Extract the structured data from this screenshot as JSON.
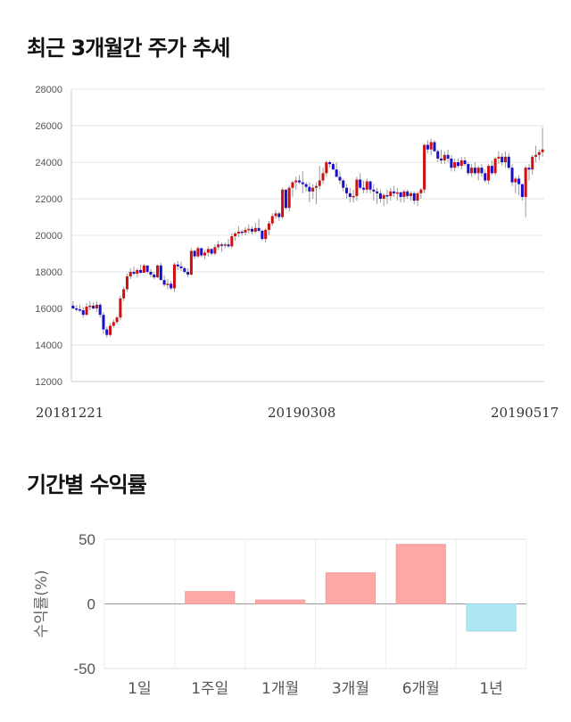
{
  "chart_title": "최근 3개월간 주가 추세",
  "returns_title": "기간별 수익률",
  "colors": {
    "up": "#cc1111",
    "down": "#1a10c8",
    "pos_bar": "#ffa8a8",
    "neg_bar": "#aee8f2"
  },
  "chart_data": [
    {
      "type": "candlestick",
      "ylim": [
        12000,
        28000
      ],
      "yticks": [
        12000,
        14000,
        16000,
        18000,
        20000,
        22000,
        24000,
        26000,
        28000
      ],
      "xticks": [
        "20181221",
        "20190308",
        "20190517"
      ],
      "grid": true,
      "ohlc": [
        [
          16150,
          16400,
          15950,
          16000
        ],
        [
          16000,
          16200,
          15850,
          15950
        ],
        [
          15950,
          16200,
          15800,
          15900
        ],
        [
          15900,
          16050,
          15500,
          15650
        ],
        [
          15650,
          16300,
          15600,
          16100
        ],
        [
          16100,
          16400,
          15900,
          16150
        ],
        [
          16150,
          16350,
          15950,
          16000
        ],
        [
          16000,
          16400,
          15800,
          16200
        ],
        [
          16200,
          16300,
          15500,
          15650
        ],
        [
          15650,
          15800,
          14600,
          14850
        ],
        [
          14850,
          15000,
          14400,
          14550
        ],
        [
          14550,
          15200,
          14450,
          15050
        ],
        [
          15050,
          15400,
          14950,
          15250
        ],
        [
          15250,
          15600,
          15150,
          15500
        ],
        [
          15500,
          16700,
          15350,
          16550
        ],
        [
          16550,
          17200,
          16400,
          17050
        ],
        [
          17050,
          17900,
          16900,
          17750
        ],
        [
          17750,
          18200,
          17600,
          18000
        ],
        [
          18000,
          18300,
          17800,
          17900
        ],
        [
          17900,
          18200,
          17700,
          18100
        ],
        [
          18100,
          18400,
          17900,
          17950
        ],
        [
          17950,
          18450,
          18000,
          18350
        ],
        [
          18350,
          18300,
          17900,
          18000
        ],
        [
          18000,
          18150,
          17700,
          17850
        ],
        [
          17850,
          18000,
          17600,
          17700
        ],
        [
          17700,
          18400,
          17650,
          18350
        ],
        [
          18350,
          18500,
          17600,
          17550
        ],
        [
          17550,
          17800,
          17200,
          17300
        ],
        [
          17300,
          17600,
          17050,
          17350
        ],
        [
          17350,
          17500,
          17000,
          17100
        ],
        [
          17100,
          18500,
          16900,
          18400
        ],
        [
          18400,
          18600,
          18100,
          18300
        ],
        [
          18300,
          18550,
          18050,
          18200
        ],
        [
          18200,
          18300,
          17900,
          18000
        ],
        [
          18000,
          18200,
          17700,
          17850
        ],
        [
          17850,
          19300,
          17800,
          19150
        ],
        [
          19150,
          19200,
          18700,
          18850
        ],
        [
          18850,
          19400,
          18750,
          19300
        ],
        [
          19300,
          19300,
          18800,
          18900
        ],
        [
          18900,
          19200,
          18700,
          19050
        ],
        [
          19050,
          19400,
          18850,
          19250
        ],
        [
          19250,
          19300,
          18900,
          19000
        ],
        [
          19000,
          19500,
          18900,
          19350
        ],
        [
          19350,
          19700,
          19200,
          19500
        ],
        [
          19500,
          19600,
          19100,
          19450
        ],
        [
          19450,
          19600,
          19300,
          19500
        ],
        [
          19500,
          19800,
          19300,
          19400
        ],
        [
          19400,
          20100,
          19300,
          19950
        ],
        [
          19950,
          20200,
          19700,
          20100
        ],
        [
          20100,
          20500,
          19900,
          20200
        ],
        [
          20200,
          20300,
          20000,
          20150
        ],
        [
          20150,
          20450,
          20000,
          20300
        ],
        [
          20300,
          20600,
          20100,
          20350
        ],
        [
          20350,
          20500,
          20050,
          20200
        ],
        [
          20200,
          20700,
          20100,
          20400
        ],
        [
          20400,
          20900,
          20150,
          20250
        ],
        [
          20250,
          20300,
          19700,
          19800
        ],
        [
          19800,
          20400,
          19600,
          20300
        ],
        [
          20300,
          20800,
          20000,
          20650
        ],
        [
          20650,
          21200,
          20500,
          21050
        ],
        [
          21050,
          21400,
          20900,
          21200
        ],
        [
          21200,
          21300,
          20800,
          21000
        ],
        [
          21000,
          22600,
          20900,
          22500
        ],
        [
          22500,
          22400,
          21400,
          21500
        ],
        [
          21500,
          22700,
          21300,
          22600
        ],
        [
          22600,
          23000,
          22100,
          22900
        ],
        [
          22900,
          23200,
          22500,
          23000
        ],
        [
          23000,
          23300,
          22800,
          22900
        ],
        [
          22900,
          23500,
          22300,
          22800
        ],
        [
          22800,
          22900,
          22400,
          22650
        ],
        [
          22650,
          22900,
          21800,
          22400
        ],
        [
          22400,
          22800,
          22000,
          22600
        ],
        [
          22600,
          22900,
          21700,
          22700
        ],
        [
          22700,
          23800,
          22500,
          23000
        ],
        [
          23000,
          23700,
          22800,
          23400
        ],
        [
          23400,
          24100,
          23200,
          24000
        ],
        [
          24000,
          24100,
          23700,
          23900
        ],
        [
          23900,
          24000,
          23600,
          23600
        ],
        [
          23600,
          24000,
          23200,
          23200
        ],
        [
          23200,
          23500,
          22800,
          23000
        ],
        [
          23000,
          23100,
          22400,
          22600
        ],
        [
          22600,
          22800,
          22000,
          22300
        ],
        [
          22300,
          22600,
          21800,
          22100
        ],
        [
          22100,
          22500,
          21800,
          22150
        ],
        [
          22150,
          23200,
          21900,
          23050
        ],
        [
          23050,
          23400,
          22500,
          22600
        ],
        [
          22600,
          23000,
          22300,
          22500
        ],
        [
          22500,
          23100,
          22300,
          22950
        ],
        [
          22950,
          23000,
          22300,
          22500
        ],
        [
          22500,
          22800,
          21900,
          22400
        ],
        [
          22400,
          22600,
          21700,
          22300
        ],
        [
          22300,
          22500,
          21800,
          22000
        ],
        [
          22000,
          22300,
          21600,
          22200
        ],
        [
          22200,
          22500,
          21700,
          22150
        ],
        [
          22150,
          22600,
          21900,
          22400
        ],
        [
          22400,
          22700,
          22100,
          22300
        ],
        [
          22300,
          22600,
          21900,
          22350
        ],
        [
          22350,
          22400,
          21800,
          22100
        ],
        [
          22100,
          22500,
          21800,
          22400
        ],
        [
          22400,
          22500,
          22000,
          22150
        ],
        [
          22150,
          22400,
          21900,
          22300
        ],
        [
          22300,
          22400,
          21700,
          21900
        ],
        [
          21900,
          22400,
          21600,
          22300
        ],
        [
          22300,
          22600,
          22000,
          22500
        ],
        [
          22500,
          25000,
          22300,
          24950
        ],
        [
          24950,
          25200,
          24500,
          24700
        ],
        [
          24700,
          25300,
          24400,
          25100
        ],
        [
          25100,
          25200,
          24600,
          24600
        ],
        [
          24600,
          24700,
          24000,
          24200
        ],
        [
          24200,
          24700,
          23900,
          24100
        ],
        [
          24100,
          24600,
          23900,
          24400
        ],
        [
          24400,
          24700,
          24000,
          24200
        ],
        [
          24200,
          24400,
          23500,
          23700
        ],
        [
          23700,
          24200,
          23500,
          24000
        ],
        [
          24000,
          24200,
          23700,
          23800
        ],
        [
          23800,
          24300,
          23600,
          24100
        ],
        [
          24100,
          24300,
          23800,
          23900
        ],
        [
          23900,
          24000,
          23300,
          23400
        ],
        [
          23400,
          23900,
          23200,
          23700
        ],
        [
          23700,
          24000,
          23300,
          23400
        ],
        [
          23400,
          23800,
          23000,
          23700
        ],
        [
          23700,
          23900,
          23200,
          23400
        ],
        [
          23400,
          23600,
          22900,
          23000
        ],
        [
          23000,
          23900,
          22800,
          23800
        ],
        [
          23800,
          24100,
          23300,
          23400
        ],
        [
          23400,
          24300,
          23300,
          24200
        ],
        [
          24200,
          24600,
          23900,
          24300
        ],
        [
          24300,
          24500,
          23800,
          24000
        ],
        [
          24000,
          24600,
          23700,
          24300
        ],
        [
          24300,
          24500,
          23600,
          23700
        ],
        [
          23700,
          23900,
          22700,
          22900
        ],
        [
          22900,
          23200,
          22300,
          23100
        ],
        [
          23100,
          23300,
          22200,
          22800
        ],
        [
          22800,
          22800,
          21900,
          22100
        ],
        [
          22100,
          23800,
          21000,
          23700
        ],
        [
          23700,
          23900,
          23000,
          23600
        ],
        [
          23600,
          24400,
          23300,
          24300
        ],
        [
          24300,
          24900,
          24000,
          24400
        ],
        [
          24400,
          24700,
          24100,
          24550
        ],
        [
          24550,
          25900,
          24300,
          24700
        ]
      ]
    },
    {
      "type": "bar",
      "categories": [
        "1일",
        "1주일",
        "1개월",
        "3개월",
        "6개월",
        "1년"
      ],
      "values": [
        0,
        9.5,
        3,
        24,
        46,
        -21
      ],
      "ylabel": "수익률(%)",
      "ylim": [
        -50,
        50
      ],
      "yticks": [
        "50",
        "0",
        "-50"
      ],
      "grid": true
    }
  ]
}
